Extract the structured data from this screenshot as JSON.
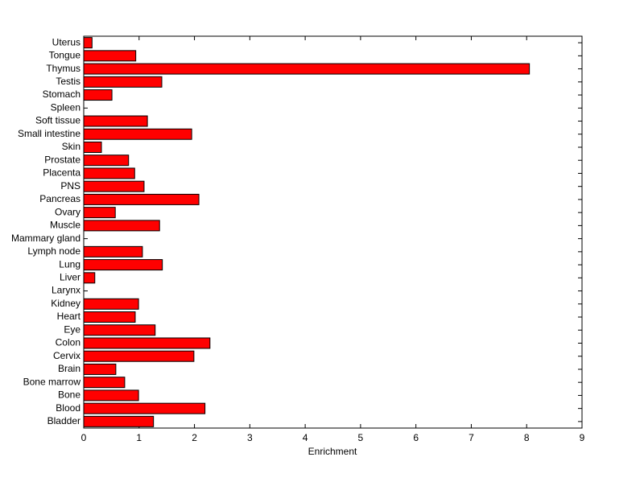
{
  "chart_data": {
    "type": "barh",
    "xlabel": "Enrichment",
    "categories": [
      "Uterus",
      "Tongue",
      "Thymus",
      "Testis",
      "Stomach",
      "Spleen",
      "Soft tissue",
      "Small intestine",
      "Skin",
      "Prostate",
      "Placenta",
      "PNS",
      "Pancreas",
      "Ovary",
      "Muscle",
      "Mammary gland",
      "Lymph node",
      "Lung",
      "Liver",
      "Larynx",
      "Kidney",
      "Heart",
      "Eye",
      "Colon",
      "Cervix",
      "Brain",
      "Bone marrow",
      "Bone",
      "Blood",
      "Bladder"
    ],
    "values": [
      0.15,
      0.94,
      8.05,
      1.41,
      0.51,
      0,
      1.15,
      1.95,
      0.32,
      0.81,
      0.92,
      1.09,
      2.08,
      0.57,
      1.37,
      0,
      1.06,
      1.42,
      0.2,
      0,
      0.99,
      0.93,
      1.29,
      2.28,
      1.99,
      0.58,
      0.74,
      0.99,
      2.19,
      1.26
    ],
    "color": "#ff0000",
    "xlim": [
      0,
      9
    ],
    "xticks": [
      0,
      1,
      2,
      3,
      4,
      5,
      6,
      7,
      8,
      9
    ],
    "grid": false
  }
}
